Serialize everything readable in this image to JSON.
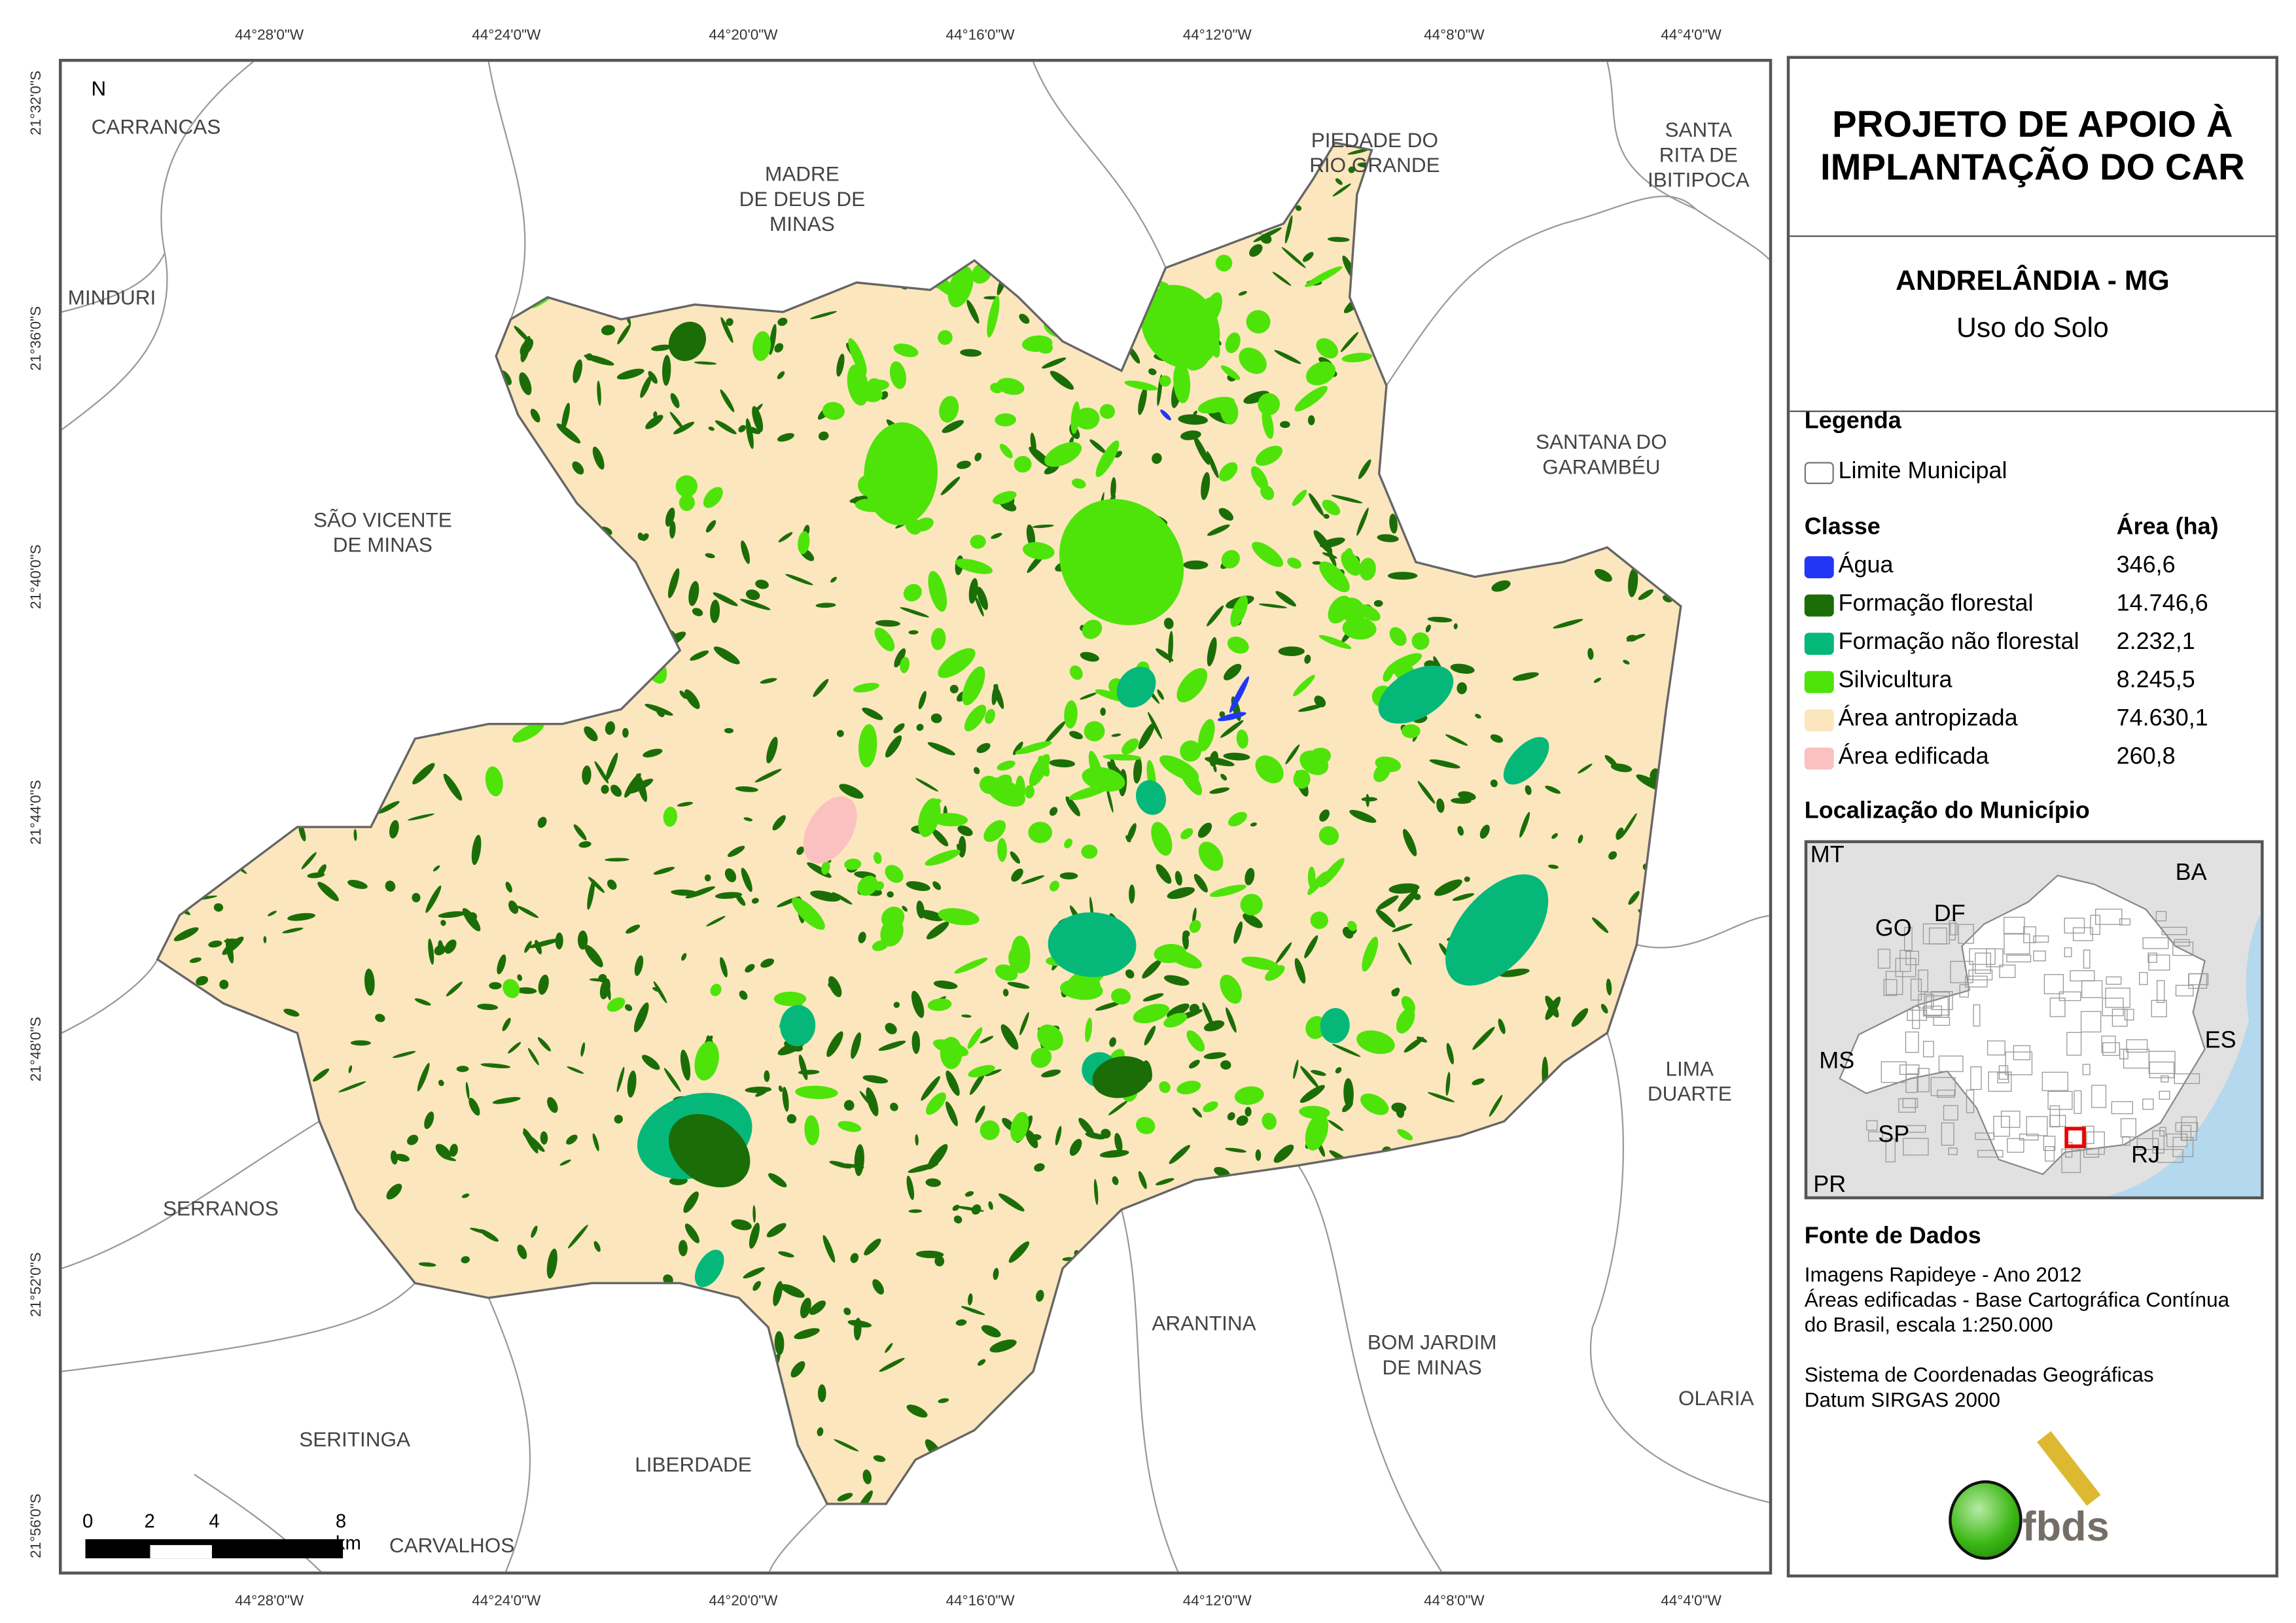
{
  "map": {
    "x_ticks": [
      "44°28'0\"W",
      "44°24'0\"W",
      "44°20'0\"W",
      "44°16'0\"W",
      "44°12'0\"W",
      "44°8'0\"W",
      "44°4'0\"W"
    ],
    "y_ticks": [
      "21°32'0\"S",
      "21°36'0\"S",
      "21°40'0\"S",
      "21°44'0\"S",
      "21°48'0\"S",
      "21°52'0\"S",
      "21°56'0\"S"
    ],
    "north_label": "N",
    "scale_labels": [
      "0",
      "2",
      "4",
      "8 km"
    ],
    "neighbors": [
      {
        "name": "CARRANCAS"
      },
      {
        "name": "MINDURI"
      },
      {
        "name": "MADRE\nDE DEUS DE\nMINAS"
      },
      {
        "name": "PIEDADE DO\nRIO GRANDE"
      },
      {
        "name": "SANTA\nRITA DE\nIBITIPOCA"
      },
      {
        "name": "SANTANA DO\nGARAMBÉU"
      },
      {
        "name": "SÃO VICENTE\nDE MINAS"
      },
      {
        "name": "LIMA\nDUARTE"
      },
      {
        "name": "SERRANOS"
      },
      {
        "name": "ARANTINA"
      },
      {
        "name": "BOM JARDIM\nDE MINAS"
      },
      {
        "name": "OLARIA"
      },
      {
        "name": "SERITINGA"
      },
      {
        "name": "LIBERDADE"
      },
      {
        "name": "CARVALHOS"
      }
    ]
  },
  "panel": {
    "title": "PROJETO DE APOIO À IMPLANTAÇÃO DO CAR",
    "municipality": "ANDRELÂNDIA - MG",
    "subtitle": "Uso do Solo",
    "legend_heading": "Legenda",
    "boundary_label": "Limite Municipal",
    "class_heading": "Classe",
    "area_heading": "Área (ha)",
    "classes": [
      {
        "label": "Água",
        "area": "346,6",
        "color": "#2237f5"
      },
      {
        "label": "Formação florestal",
        "area": "14.746,6",
        "color": "#1b6e07"
      },
      {
        "label": "Formação não florestal",
        "area": "2.232,1",
        "color": "#05b87a"
      },
      {
        "label": "Silvicultura",
        "area": "8.245,5",
        "color": "#4ee40a"
      },
      {
        "label": "Área antropizada",
        "area": "74.630,1",
        "color": "#fce6be"
      },
      {
        "label": "Área edificada",
        "area": "260,8",
        "color": "#fbc0c0"
      }
    ],
    "location_heading": "Localização do Município",
    "inset_labels": [
      "MT",
      "BA",
      "GO",
      "DF",
      "MS",
      "ES",
      "SP",
      "RJ",
      "PR"
    ],
    "source_heading": "Fonte de Dados",
    "source_lines": [
      "Imagens Rapideye - Ano 2012",
      "Áreas edificadas - Base Cartográfica Contínua",
      "do Brasil, escala 1:250.000"
    ],
    "crs_lines": [
      "Sistema de Coordenadas Geográficas",
      "Datum SIRGAS 2000"
    ],
    "logo_text": "fbds"
  }
}
